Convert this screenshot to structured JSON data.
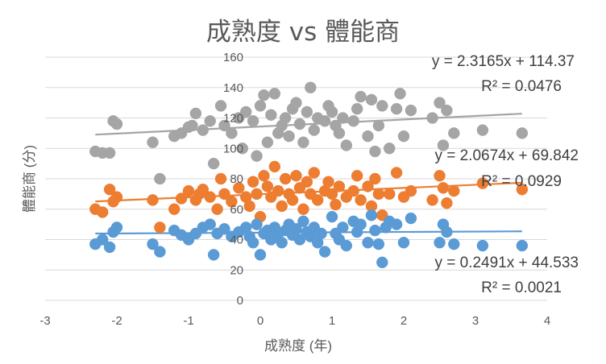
{
  "chart_data": {
    "type": "scatter",
    "title": "成熟度 vs 體能商",
    "xlabel": "成熟度 (年)",
    "ylabel": "體能商 (分)",
    "xlim": [
      -3,
      4
    ],
    "ylim": [
      0,
      160
    ],
    "xticks": [
      "-3",
      "-2",
      "-1",
      "0",
      "1",
      "2",
      "3",
      "4"
    ],
    "yticks": [
      "0",
      "20",
      "40",
      "60",
      "80",
      "100",
      "120",
      "140",
      "160"
    ],
    "grid": "horizontal",
    "series": [
      {
        "color": "#5b9bd5",
        "trendline": {
          "slope": 0.2491,
          "intercept": 44.533
        },
        "equation": "y = 0.2491x + 44.533",
        "r2": "R² = 0.0021",
        "points": [
          [
            -2.3,
            37
          ],
          [
            -2.2,
            40
          ],
          [
            -2.1,
            35
          ],
          [
            -2.05,
            45
          ],
          [
            -2.0,
            48
          ],
          [
            -1.5,
            37
          ],
          [
            -1.4,
            32
          ],
          [
            -1.2,
            46
          ],
          [
            -1.1,
            43
          ],
          [
            -1.0,
            40
          ],
          [
            -0.9,
            44
          ],
          [
            -0.8,
            48
          ],
          [
            -0.7,
            50
          ],
          [
            -0.65,
            30
          ],
          [
            -0.6,
            44
          ],
          [
            -0.5,
            47
          ],
          [
            -0.4,
            42
          ],
          [
            -0.3,
            45
          ],
          [
            -0.2,
            48
          ],
          [
            -0.15,
            42
          ],
          [
            -0.1,
            38
          ],
          [
            -0.05,
            50
          ],
          [
            0.0,
            30
          ],
          [
            0.05,
            44
          ],
          [
            0.1,
            46
          ],
          [
            0.15,
            40
          ],
          [
            0.2,
            48
          ],
          [
            0.25,
            44
          ],
          [
            0.3,
            38
          ],
          [
            0.35,
            46
          ],
          [
            0.4,
            50
          ],
          [
            0.45,
            43
          ],
          [
            0.5,
            47
          ],
          [
            0.55,
            40
          ],
          [
            0.6,
            52
          ],
          [
            0.65,
            45
          ],
          [
            0.7,
            42
          ],
          [
            0.75,
            48
          ],
          [
            0.8,
            38
          ],
          [
            0.85,
            44
          ],
          [
            0.9,
            32
          ],
          [
            1.0,
            55
          ],
          [
            1.05,
            44
          ],
          [
            1.1,
            40
          ],
          [
            1.15,
            48
          ],
          [
            1.2,
            36
          ],
          [
            1.3,
            52
          ],
          [
            1.35,
            45
          ],
          [
            1.4,
            50
          ],
          [
            1.5,
            38
          ],
          [
            1.55,
            56
          ],
          [
            1.6,
            46
          ],
          [
            1.65,
            37
          ],
          [
            1.7,
            25
          ],
          [
            1.75,
            48
          ],
          [
            1.8,
            52
          ],
          [
            1.9,
            50
          ],
          [
            2.0,
            38
          ],
          [
            2.1,
            54
          ],
          [
            2.5,
            38
          ],
          [
            2.55,
            50
          ],
          [
            2.6,
            45
          ],
          [
            2.7,
            37
          ],
          [
            3.1,
            36
          ],
          [
            3.65,
            36
          ]
        ]
      },
      {
        "color": "#ed7d31",
        "trendline": {
          "slope": 2.0674,
          "intercept": 69.842
        },
        "equation": "y = 2.0674x + 69.842",
        "r2": "R² = 0.0929",
        "points": [
          [
            -2.3,
            60
          ],
          [
            -2.2,
            58
          ],
          [
            -2.1,
            73
          ],
          [
            -2.05,
            65
          ],
          [
            -2.0,
            68
          ],
          [
            -1.5,
            66
          ],
          [
            -1.4,
            48
          ],
          [
            -1.2,
            60
          ],
          [
            -1.1,
            67
          ],
          [
            -1.0,
            72
          ],
          [
            -0.9,
            66
          ],
          [
            -0.85,
            70
          ],
          [
            -0.8,
            73
          ],
          [
            -0.7,
            68
          ],
          [
            -0.6,
            60
          ],
          [
            -0.55,
            80
          ],
          [
            -0.5,
            70
          ],
          [
            -0.4,
            65
          ],
          [
            -0.3,
            74
          ],
          [
            -0.2,
            68
          ],
          [
            -0.15,
            62
          ],
          [
            -0.1,
            78
          ],
          [
            -0.05,
            70
          ],
          [
            0.0,
            55
          ],
          [
            0.05,
            82
          ],
          [
            0.1,
            75
          ],
          [
            0.15,
            68
          ],
          [
            0.2,
            88
          ],
          [
            0.25,
            72
          ],
          [
            0.3,
            62
          ],
          [
            0.35,
            80
          ],
          [
            0.4,
            70
          ],
          [
            0.45,
            66
          ],
          [
            0.5,
            82
          ],
          [
            0.55,
            74
          ],
          [
            0.6,
            60
          ],
          [
            0.65,
            78
          ],
          [
            0.7,
            70
          ],
          [
            0.75,
            84
          ],
          [
            0.8,
            66
          ],
          [
            0.9,
            72
          ],
          [
            0.95,
            78
          ],
          [
            1.0,
            70
          ],
          [
            1.05,
            63
          ],
          [
            1.1,
            75
          ],
          [
            1.2,
            68
          ],
          [
            1.3,
            72
          ],
          [
            1.35,
            82
          ],
          [
            1.4,
            66
          ],
          [
            1.5,
            75
          ],
          [
            1.55,
            62
          ],
          [
            1.6,
            80
          ],
          [
            1.65,
            70
          ],
          [
            1.7,
            56
          ],
          [
            1.8,
            70
          ],
          [
            1.9,
            84
          ],
          [
            2.0,
            68
          ],
          [
            2.1,
            72
          ],
          [
            2.4,
            66
          ],
          [
            2.5,
            82
          ],
          [
            2.55,
            74
          ],
          [
            2.6,
            64
          ],
          [
            2.7,
            72
          ],
          [
            3.1,
            77
          ],
          [
            3.65,
            73
          ]
        ]
      },
      {
        "color": "#a5a5a5",
        "trendline": {
          "slope": 2.3165,
          "intercept": 114.37
        },
        "equation": "y = 2.3165x + 114.37",
        "r2": "R² = 0.0476",
        "points": [
          [
            -2.3,
            98
          ],
          [
            -2.2,
            97
          ],
          [
            -2.1,
            97
          ],
          [
            -2.05,
            118
          ],
          [
            -2.0,
            116
          ],
          [
            -1.5,
            104
          ],
          [
            -1.4,
            80
          ],
          [
            -1.2,
            108
          ],
          [
            -1.1,
            110
          ],
          [
            -1.0,
            114
          ],
          [
            -0.95,
            115
          ],
          [
            -0.9,
            123
          ],
          [
            -0.8,
            112
          ],
          [
            -0.7,
            118
          ],
          [
            -0.65,
            90
          ],
          [
            -0.55,
            128
          ],
          [
            -0.5,
            115
          ],
          [
            -0.4,
            110
          ],
          [
            -0.3,
            120
          ],
          [
            -0.25,
            100
          ],
          [
            -0.2,
            124
          ],
          [
            -0.1,
            118
          ],
          [
            -0.05,
            95
          ],
          [
            0.0,
            128
          ],
          [
            0.05,
            135
          ],
          [
            0.1,
            104
          ],
          [
            0.15,
            122
          ],
          [
            0.2,
            136
          ],
          [
            0.25,
            110
          ],
          [
            0.3,
            115
          ],
          [
            0.35,
            120
          ],
          [
            0.4,
            108
          ],
          [
            0.45,
            126
          ],
          [
            0.5,
            130
          ],
          [
            0.55,
            116
          ],
          [
            0.6,
            104
          ],
          [
            0.65,
            124
          ],
          [
            0.7,
            140
          ],
          [
            0.75,
            112
          ],
          [
            0.8,
            120
          ],
          [
            0.9,
            118
          ],
          [
            0.95,
            128
          ],
          [
            1.0,
            124
          ],
          [
            1.05,
            115
          ],
          [
            1.1,
            110
          ],
          [
            1.15,
            120
          ],
          [
            1.2,
            102
          ],
          [
            1.3,
            118
          ],
          [
            1.35,
            126
          ],
          [
            1.4,
            134
          ],
          [
            1.5,
            108
          ],
          [
            1.55,
            132
          ],
          [
            1.6,
            98
          ],
          [
            1.65,
            115
          ],
          [
            1.7,
            128
          ],
          [
            1.8,
            100
          ],
          [
            1.9,
            126
          ],
          [
            1.95,
            136
          ],
          [
            2.0,
            108
          ],
          [
            2.1,
            125
          ],
          [
            2.4,
            120
          ],
          [
            2.5,
            130
          ],
          [
            2.55,
            102
          ],
          [
            2.6,
            125
          ],
          [
            2.7,
            110
          ],
          [
            3.1,
            112
          ],
          [
            3.65,
            110
          ]
        ]
      }
    ]
  }
}
